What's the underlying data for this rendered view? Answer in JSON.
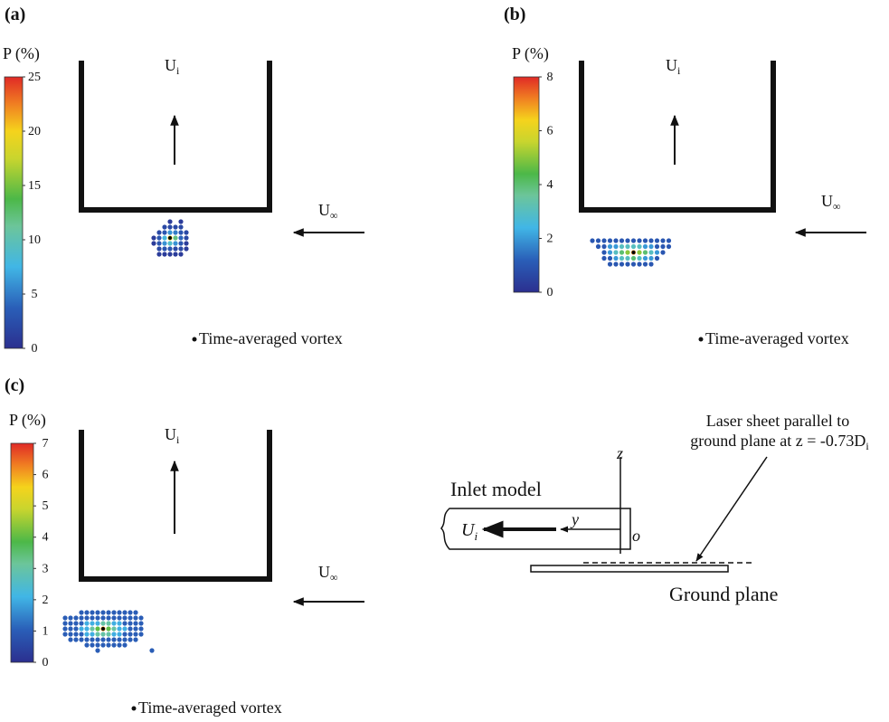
{
  "panels": [
    {
      "label": "(a)",
      "colorbar": {
        "title": "P (%)",
        "lim": [
          0,
          25
        ],
        "ticks": [
          0,
          5,
          10,
          15,
          20,
          25
        ]
      },
      "inlet_velocity": {
        "symbol": "U",
        "subscript": "i"
      },
      "freestream": {
        "symbol": "U",
        "subscript": "∞"
      },
      "legend": "Time-averaged vortex",
      "dots": [
        [
          null,
          null,
          null,
          1,
          null,
          1,
          null
        ],
        [
          null,
          null,
          2,
          2,
          2,
          2,
          null
        ],
        [
          null,
          2,
          3,
          6,
          5,
          3,
          2
        ],
        [
          1,
          3,
          8,
          20,
          12,
          4,
          2
        ],
        [
          1,
          3,
          6,
          9,
          6,
          3,
          1
        ],
        [
          null,
          2,
          3,
          3,
          2,
          2,
          1
        ],
        [
          null,
          1,
          1,
          1,
          1,
          1,
          null
        ]
      ]
    },
    {
      "label": "(b)",
      "colorbar": {
        "title": "P (%)",
        "lim": [
          0,
          8
        ],
        "ticks": [
          0,
          2,
          4,
          6,
          8
        ]
      },
      "inlet_velocity": {
        "symbol": "U",
        "subscript": "i"
      },
      "freestream": {
        "symbol": "U",
        "subscript": "∞"
      },
      "legend": "Time-averaged vortex",
      "dots": [
        [
          1,
          1,
          1,
          1,
          1,
          1,
          1,
          1,
          1,
          1,
          1,
          1,
          1,
          1
        ],
        [
          null,
          1,
          1,
          2,
          2,
          3,
          3,
          3,
          3,
          2,
          2,
          1,
          1,
          1
        ],
        [
          null,
          null,
          1,
          2,
          3,
          4,
          5,
          7,
          5,
          4,
          3,
          2,
          1,
          null
        ],
        [
          null,
          null,
          1,
          1,
          2,
          3,
          3,
          4,
          3,
          2,
          2,
          1,
          null,
          null
        ],
        [
          null,
          null,
          null,
          1,
          1,
          1,
          1,
          1,
          1,
          1,
          1,
          null,
          null,
          null
        ]
      ]
    },
    {
      "label": "(c)",
      "colorbar": {
        "title": "P (%)",
        "lim": [
          0,
          7
        ],
        "ticks": [
          0,
          1,
          2,
          3,
          4,
          5,
          6,
          7
        ]
      },
      "inlet_velocity": {
        "symbol": "U",
        "subscript": "i"
      },
      "freestream": {
        "symbol": "U",
        "subscript": "∞"
      },
      "legend": "Time-averaged vortex",
      "dots": [
        [
          null,
          null,
          null,
          1,
          1,
          1,
          1,
          1,
          1,
          1,
          1,
          1,
          1,
          1,
          null,
          null
        ],
        [
          1,
          1,
          1,
          1,
          1,
          1,
          1,
          1,
          1,
          1,
          1,
          1,
          1,
          1,
          1,
          null
        ],
        [
          1,
          1,
          1,
          1,
          2,
          2,
          2,
          3,
          3,
          2,
          2,
          1,
          1,
          1,
          1,
          null
        ],
        [
          1,
          1,
          1,
          2,
          2,
          3,
          4,
          6,
          4,
          3,
          2,
          2,
          1,
          1,
          1,
          null
        ],
        [
          1,
          1,
          1,
          1,
          2,
          2,
          3,
          3,
          3,
          2,
          2,
          1,
          1,
          1,
          1,
          null
        ],
        [
          null,
          1,
          1,
          1,
          1,
          1,
          1,
          1,
          1,
          1,
          1,
          1,
          1,
          1,
          null,
          null
        ],
        [
          null,
          null,
          null,
          null,
          1,
          1,
          1,
          1,
          1,
          1,
          1,
          1,
          null,
          null,
          null,
          null
        ],
        [
          null,
          null,
          null,
          null,
          null,
          null,
          1,
          null,
          null,
          null,
          null,
          null,
          null,
          null,
          null,
          null,
          1
        ]
      ]
    }
  ],
  "schematic": {
    "z_axis": "z",
    "y_axis": "y",
    "origin": "o",
    "inlet_model": "Inlet model",
    "inlet_velocity": {
      "symbol": "U",
      "subscript": "i"
    },
    "laser_line1": "Laser sheet parallel to",
    "laser_line2": "ground plane at z = -0.73D",
    "laser_sub": "i",
    "ground_plane": "Ground plane"
  }
}
